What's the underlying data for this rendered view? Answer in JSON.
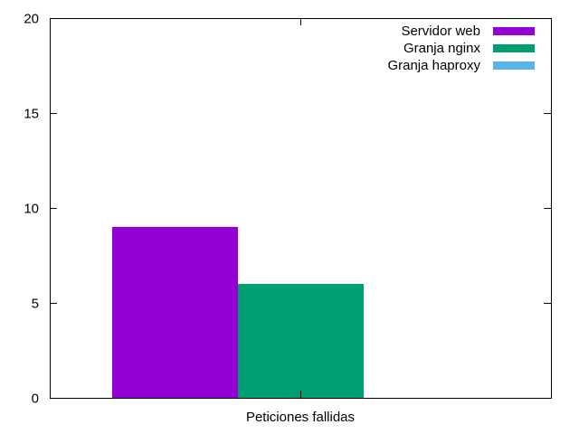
{
  "chart_data": {
    "type": "bar",
    "categories": [
      "Peticiones fallidas"
    ],
    "series": [
      {
        "name": "Servidor web",
        "values": [
          9
        ],
        "color": "#9400d3"
      },
      {
        "name": "Granja nginx",
        "values": [
          6
        ],
        "color": "#009e73"
      },
      {
        "name": "Granja haproxy",
        "values": [
          0
        ],
        "color": "#56b4e9"
      }
    ],
    "ylim": [
      0,
      20
    ],
    "yticks": [
      "0",
      "5",
      "10",
      "15",
      "20"
    ],
    "grid": false,
    "legend_position": "top-right"
  }
}
